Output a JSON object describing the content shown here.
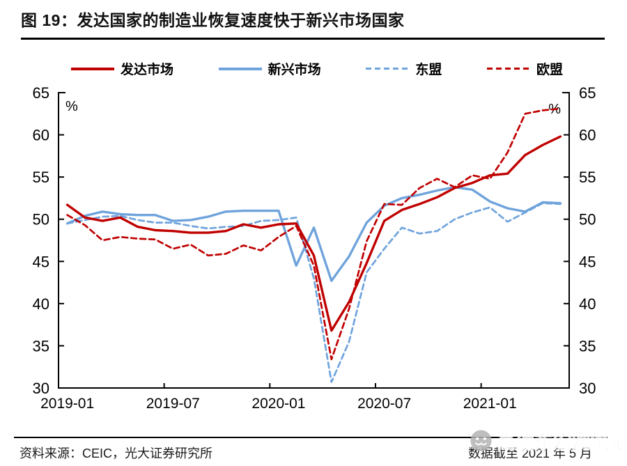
{
  "title": "图 19：发达国家的制造业恢复速度快于新兴市场国家",
  "source_note": "资料来源：CEIC，光大证券研究所",
  "data_note": "数据截至 2021 年 5 月",
  "watermark": "高瑞东宏观笔记",
  "colors": {
    "red": "#C00000",
    "blue": "#6FA3DC",
    "axis": "#000000"
  },
  "chart_data": {
    "type": "line",
    "unit": "%",
    "title": "发达国家的制造业恢复速度快于新兴市场国家（制造业PMI）",
    "ylim": [
      30,
      65
    ],
    "yticks": [
      30,
      35,
      40,
      45,
      50,
      55,
      60,
      65
    ],
    "grid": false,
    "legend_position": "top",
    "x": [
      "2019-01",
      "2019-02",
      "2019-03",
      "2019-04",
      "2019-05",
      "2019-06",
      "2019-07",
      "2019-08",
      "2019-09",
      "2019-10",
      "2019-11",
      "2019-12",
      "2020-01",
      "2020-02",
      "2020-03",
      "2020-04",
      "2020-05",
      "2020-06",
      "2020-07",
      "2020-08",
      "2020-09",
      "2020-10",
      "2020-11",
      "2020-12",
      "2021-01",
      "2021-02",
      "2021-03",
      "2021-04",
      "2021-05"
    ],
    "x_tick_indices": [
      0,
      6,
      12,
      18,
      24
    ],
    "x_tick_labels": [
      "2019-01",
      "2019-07",
      "2020-01",
      "2020-07",
      "2021-01"
    ],
    "series": [
      {
        "name": "发达市场",
        "color": "#C00000",
        "dash": false,
        "values": [
          51.7,
          50.2,
          49.8,
          50.2,
          49.1,
          48.7,
          48.6,
          48.4,
          48.4,
          48.6,
          49.4,
          49.0,
          49.4,
          49.5,
          45.7,
          36.8,
          40.2,
          44.8,
          49.8,
          51.1,
          51.8,
          52.6,
          53.7,
          54.3,
          55.2,
          55.4,
          57.6,
          58.8,
          59.8
        ]
      },
      {
        "name": "新兴市场",
        "color": "#6FA3DC",
        "dash": false,
        "values": [
          49.5,
          50.4,
          50.9,
          50.6,
          50.5,
          50.5,
          49.8,
          49.9,
          50.3,
          50.9,
          51.0,
          51.0,
          51.0,
          44.5,
          49.0,
          42.7,
          45.6,
          49.6,
          51.6,
          52.5,
          52.9,
          53.4,
          53.8,
          53.5,
          52.1,
          51.3,
          50.9,
          52.0,
          51.9
        ]
      },
      {
        "name": "东盟",
        "color": "#6FA3DC",
        "dash": true,
        "values": [
          49.5,
          49.9,
          50.3,
          50.4,
          49.9,
          49.6,
          49.6,
          49.2,
          48.9,
          49.1,
          49.2,
          49.8,
          49.9,
          50.2,
          43.0,
          30.7,
          35.5,
          43.7,
          46.5,
          49.0,
          48.3,
          48.6,
          50.0,
          50.8,
          51.4,
          49.7,
          50.8,
          51.9,
          51.8
        ]
      },
      {
        "name": "欧盟",
        "color": "#C00000",
        "dash": true,
        "values": [
          50.5,
          49.3,
          47.5,
          47.9,
          47.7,
          47.6,
          46.5,
          47.0,
          45.7,
          45.9,
          46.9,
          46.3,
          47.9,
          49.2,
          44.5,
          33.4,
          39.4,
          47.4,
          51.8,
          51.7,
          53.7,
          54.8,
          53.8,
          55.2,
          54.8,
          57.9,
          62.5,
          62.9,
          63.1
        ]
      }
    ]
  }
}
